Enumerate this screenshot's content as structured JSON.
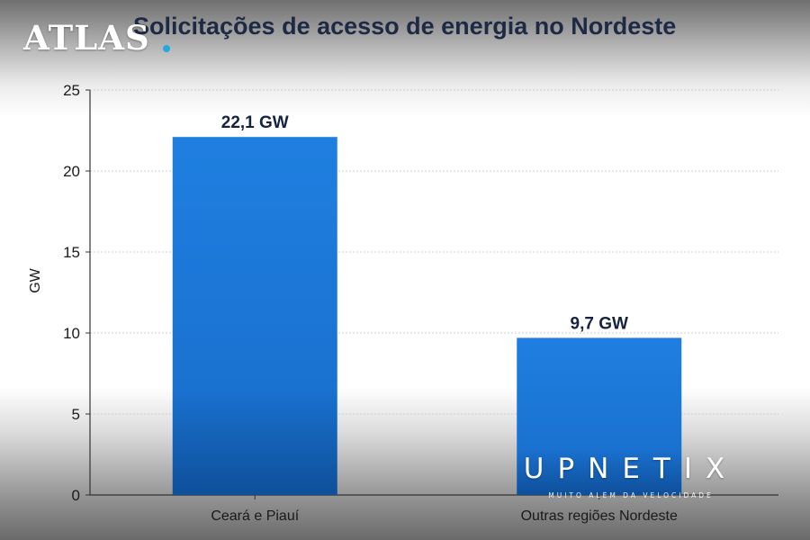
{
  "chart_data": {
    "type": "bar",
    "title": "Solicitações de acesso de energia no Nordeste",
    "ylabel": "GW",
    "xlabel": "",
    "ylim": [
      0,
      25
    ],
    "yticks": [
      0,
      5,
      10,
      15,
      20,
      25
    ],
    "grid": true,
    "categories": [
      "Ceará e Piauí",
      "Outras regiões Nordeste"
    ],
    "values": [
      22.1,
      9.7
    ],
    "data_labels": [
      "22,1 GW",
      "9,7 GW"
    ],
    "bar_color": "#1c78d6"
  },
  "watermarks": {
    "top_left": "ATLAS",
    "bottom_right": "UPNETIX",
    "bottom_right_tagline": "MUITO ALÉM DA VELOCIDADE"
  }
}
